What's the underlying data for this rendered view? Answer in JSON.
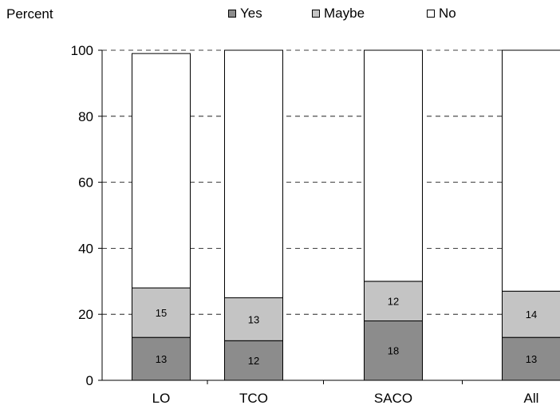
{
  "chart_data": {
    "type": "bar",
    "stacked": true,
    "title": "",
    "xlabel": "",
    "ylabel": "Percent",
    "ylim": [
      0,
      100
    ],
    "yticks": [
      0,
      20,
      40,
      60,
      80,
      100
    ],
    "grid": "dashed-horizontal",
    "legend_position": "top",
    "categories": [
      "LO",
      "TCO",
      "SACO",
      "All"
    ],
    "series": [
      {
        "name": "Yes",
        "values": [
          13,
          12,
          18,
          13
        ],
        "labels": [
          "13",
          "12",
          "18",
          "13"
        ],
        "color": "#8c8c8c"
      },
      {
        "name": "Maybe",
        "values": [
          15,
          13,
          12,
          14
        ],
        "labels": [
          "15",
          "13",
          "12",
          "14"
        ],
        "color": "#c4c4c4"
      },
      {
        "name": "No",
        "values": [
          71,
          75,
          70,
          73
        ],
        "labels": [
          "",
          "",
          "",
          ""
        ],
        "color": "#ffffff"
      }
    ]
  }
}
